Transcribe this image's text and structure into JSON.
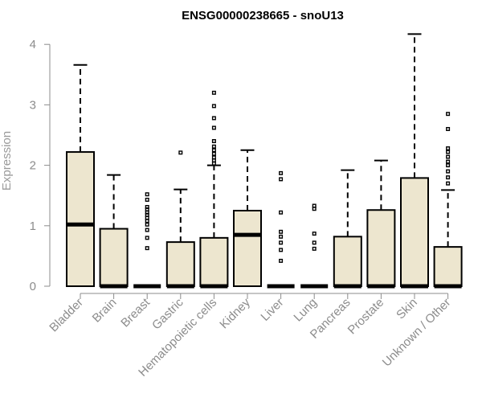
{
  "chart_data": {
    "type": "box",
    "title": "ENSG00000238665 - snoU13",
    "xlabel": "",
    "ylabel": "Expression",
    "ylim": [
      0,
      4.2
    ],
    "yticks": [
      0,
      1,
      2,
      3,
      4
    ],
    "grid": false,
    "legend": "none",
    "box_fill": "#ede6cf",
    "box_stroke": "#000000",
    "categories": [
      "Bladder",
      "Brain",
      "Breast",
      "Gastric",
      "Hematopoietic cells",
      "Kidney",
      "Liver",
      "Lung",
      "Pancreas",
      "Prostate",
      "Skin",
      "Unknown / Other"
    ],
    "boxes": [
      {
        "category": "Bladder",
        "q1": 0,
        "median": 1.02,
        "q3": 2.22,
        "whisker_low": 0,
        "whisker_high": 3.66,
        "outliers": []
      },
      {
        "category": "Brain",
        "q1": 0,
        "median": 0,
        "q3": 0.95,
        "whisker_low": 0,
        "whisker_high": 1.84,
        "outliers": []
      },
      {
        "category": "Breast",
        "q1": 0,
        "median": 0,
        "q3": 0,
        "whisker_low": 0,
        "whisker_high": 0,
        "outliers": [
          0.63,
          0.8,
          0.93,
          1.02,
          1.08,
          1.13,
          1.18,
          1.22,
          1.27,
          1.31,
          1.43,
          1.52
        ]
      },
      {
        "category": "Gastric",
        "q1": 0,
        "median": 0,
        "q3": 0.73,
        "whisker_low": 0,
        "whisker_high": 1.6,
        "outliers": [
          2.21
        ]
      },
      {
        "category": "Hematopoietic cells",
        "q1": 0,
        "median": 0,
        "q3": 0.8,
        "whisker_low": 0,
        "whisker_high": 2.0,
        "outliers": [
          2.03,
          2.08,
          2.13,
          2.19,
          2.25,
          2.31,
          2.4,
          2.62,
          2.78,
          2.98,
          3.2
        ]
      },
      {
        "category": "Kidney",
        "q1": 0,
        "median": 0.85,
        "q3": 1.25,
        "whisker_low": 0,
        "whisker_high": 2.25,
        "outliers": []
      },
      {
        "category": "Liver",
        "q1": 0,
        "median": 0,
        "q3": 0,
        "whisker_low": 0,
        "whisker_high": 0,
        "outliers": [
          0.42,
          0.6,
          0.72,
          0.82,
          0.9,
          1.22,
          1.77,
          1.87
        ]
      },
      {
        "category": "Lung",
        "q1": 0,
        "median": 0,
        "q3": 0,
        "whisker_low": 0,
        "whisker_high": 0,
        "outliers": [
          0.62,
          0.72,
          0.87,
          1.28,
          1.33
        ]
      },
      {
        "category": "Pancreas",
        "q1": 0,
        "median": 0,
        "q3": 0.82,
        "whisker_low": 0,
        "whisker_high": 1.92,
        "outliers": []
      },
      {
        "category": "Prostate",
        "q1": 0,
        "median": 0,
        "q3": 1.26,
        "whisker_low": 0,
        "whisker_high": 2.08,
        "outliers": []
      },
      {
        "category": "Skin",
        "q1": 0,
        "median": 0,
        "q3": 1.79,
        "whisker_low": 0,
        "whisker_high": 4.17,
        "outliers": []
      },
      {
        "category": "Unknown / Other",
        "q1": 0,
        "median": 0,
        "q3": 0.65,
        "whisker_low": 0,
        "whisker_high": 1.59,
        "outliers": [
          1.7,
          1.8,
          1.9,
          2.0,
          2.06,
          2.14,
          2.22,
          2.28,
          2.6,
          2.85
        ]
      }
    ]
  }
}
